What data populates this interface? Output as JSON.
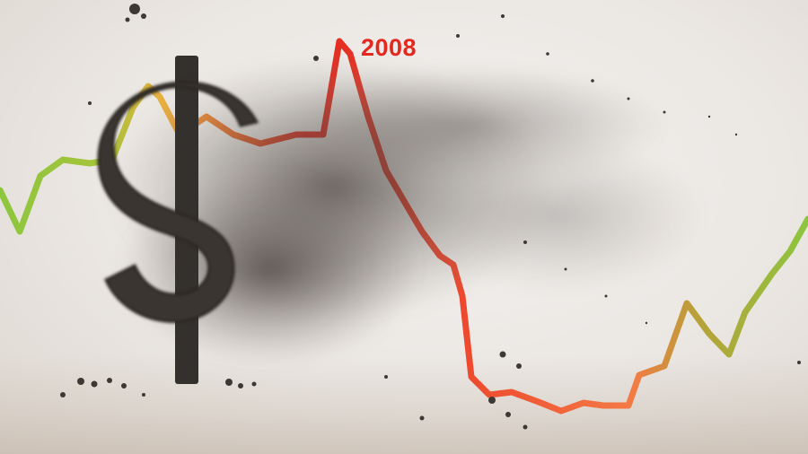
{
  "scene": {
    "year_label": "2008",
    "colors": {
      "peak_red": "#e2281f",
      "falling_orange": "#f0643a",
      "recovery_green": "#8cc63f",
      "dollar_dark": "#3b3633",
      "dust": "#4a4541",
      "background": "#ece8e4"
    },
    "icon": "dollar-sign-icon"
  }
}
